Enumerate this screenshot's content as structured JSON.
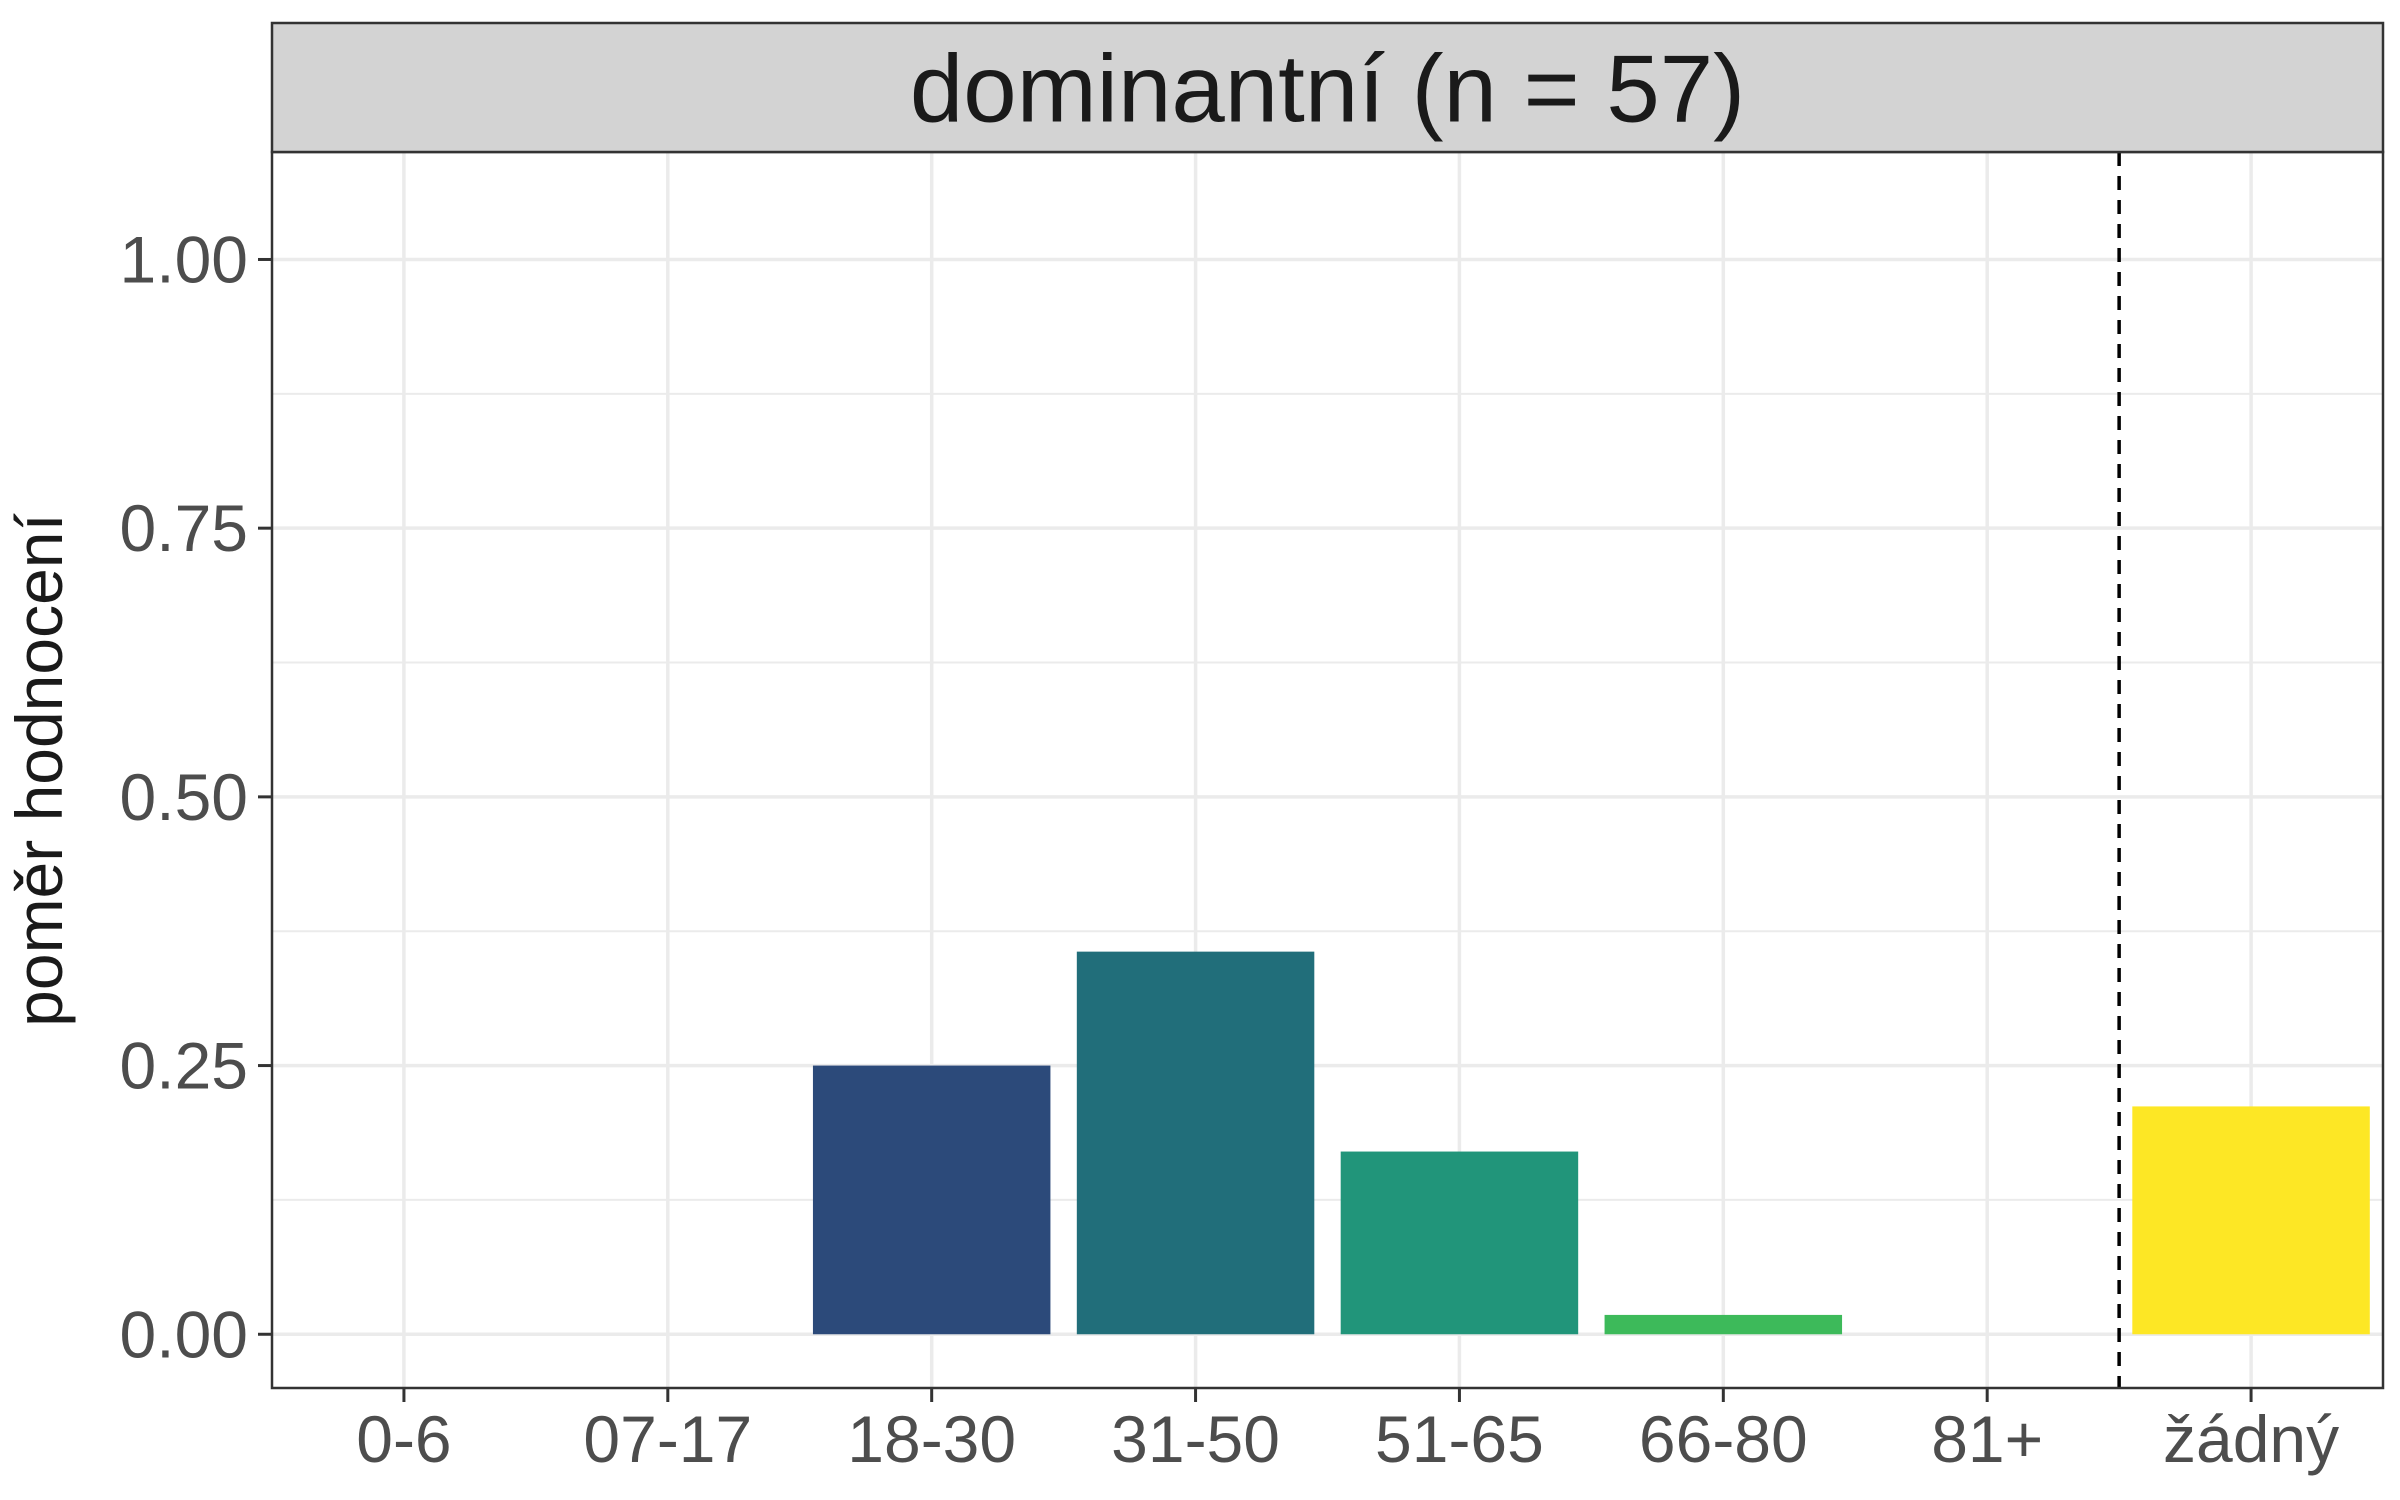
{
  "chart_data": {
    "type": "bar",
    "facet_title": "dominantní (n = 57)",
    "xlabel": "",
    "ylabel": "poměr hodnocení",
    "categories": [
      "0-6",
      "07-17",
      "18-30",
      "31-50",
      "51-65",
      "66-80",
      "81+",
      "žádný"
    ],
    "values": [
      0,
      0,
      0.25,
      0.356,
      0.17,
      0.018,
      0,
      0.212
    ],
    "bar_colors": [
      "#440154",
      "#46337E",
      "#2C4A7A",
      "#216E7A",
      "#21957A",
      "#3DBA5A",
      "#8FD744",
      "#FDE725"
    ],
    "ylim": [
      -0.05,
      1.1
    ],
    "yticks": [
      0,
      0.25,
      0.5,
      0.75,
      1.0
    ],
    "ytick_labels": [
      "0.00",
      "0.25",
      "0.50",
      "0.75",
      "1.00"
    ],
    "grid": true,
    "reference_line": {
      "between": [
        "81+",
        "žádný"
      ],
      "style": "dashed",
      "color": "#000000"
    },
    "strip_color": "#D3D3D3",
    "grid_color": "#EBEBEB"
  }
}
